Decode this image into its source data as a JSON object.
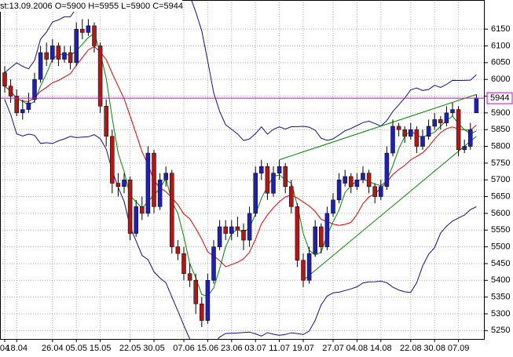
{
  "chart_data": {
    "type": "candlestick",
    "title": "st:13.09.2006 O=5900 H=5955 L=5900 C=5944",
    "categories": [
      "04",
      null,
      "18.04",
      null,
      null,
      null,
      null,
      null,
      "26.04",
      null,
      null,
      null,
      "05.05",
      null,
      null,
      null,
      "15.05",
      null,
      null,
      null,
      null,
      "22.05",
      null,
      null,
      null,
      "30.05",
      null,
      null,
      null,
      null,
      "07.06",
      null,
      null,
      null,
      "15.06",
      null,
      null,
      null,
      "23.06",
      null,
      null,
      null,
      "03.07",
      null,
      null,
      null,
      "11.07",
      null,
      null,
      null,
      "19.07",
      null,
      null,
      null,
      null,
      "27.07",
      null,
      null,
      null,
      "04.08",
      null,
      null,
      null,
      "14.08",
      null,
      null,
      null,
      null,
      "22.08",
      null,
      null,
      null,
      "30.08",
      null,
      null,
      null,
      "07.09",
      null,
      null,
      null
    ],
    "candles": [
      [
        6020,
        6040,
        5960,
        5980
      ],
      [
        5980,
        6000,
        5930,
        5950
      ],
      [
        5950,
        5970,
        5890,
        5900
      ],
      [
        5900,
        5940,
        5880,
        5910
      ],
      [
        5910,
        5960,
        5900,
        5930
      ],
      [
        5940,
        6020,
        5930,
        6000
      ],
      [
        6000,
        6100,
        5990,
        6080
      ],
      [
        6080,
        6110,
        6040,
        6060
      ],
      [
        6060,
        6120,
        6050,
        6100
      ],
      [
        6100,
        6110,
        6040,
        6060
      ],
      [
        6060,
        6100,
        6050,
        6080
      ],
      [
        6080,
        6100,
        6030,
        6050
      ],
      [
        6050,
        6170,
        6040,
        6150
      ],
      [
        6150,
        6180,
        6120,
        6140
      ],
      [
        6140,
        6180,
        6130,
        6160
      ],
      [
        6160,
        6170,
        6080,
        6100
      ],
      [
        6100,
        6110,
        5900,
        5920
      ],
      [
        5920,
        5940,
        5800,
        5830
      ],
      [
        5830,
        5850,
        5660,
        5690
      ],
      [
        5690,
        5720,
        5650,
        5680
      ],
      [
        5680,
        5720,
        5660,
        5700
      ],
      [
        5700,
        5710,
        5520,
        5540
      ],
      [
        5540,
        5640,
        5530,
        5620
      ],
      [
        5620,
        5650,
        5580,
        5600
      ],
      [
        5600,
        5800,
        5590,
        5780
      ],
      [
        5780,
        5790,
        5600,
        5620
      ],
      [
        5620,
        5720,
        5610,
        5700
      ],
      [
        5700,
        5740,
        5680,
        5720
      ],
      [
        5720,
        5730,
        5480,
        5500
      ],
      [
        5500,
        5520,
        5460,
        5480
      ],
      [
        5480,
        5500,
        5400,
        5420
      ],
      [
        5420,
        5450,
        5380,
        5400
      ],
      [
        5400,
        5420,
        5300,
        5330
      ],
      [
        5330,
        5350,
        5260,
        5280
      ],
      [
        5280,
        5420,
        5270,
        5400
      ],
      [
        5400,
        5520,
        5390,
        5500
      ],
      [
        5500,
        5580,
        5490,
        5560
      ],
      [
        5560,
        5580,
        5520,
        5540
      ],
      [
        5540,
        5580,
        5520,
        5560
      ],
      [
        5560,
        5590,
        5530,
        5550
      ],
      [
        5550,
        5570,
        5490,
        5520
      ],
      [
        5520,
        5620,
        5500,
        5600
      ],
      [
        5600,
        5740,
        5590,
        5720
      ],
      [
        5720,
        5760,
        5700,
        5740
      ],
      [
        5740,
        5750,
        5640,
        5660
      ],
      [
        5660,
        5740,
        5650,
        5720
      ],
      [
        5720,
        5760,
        5700,
        5740
      ],
      [
        5740,
        5750,
        5660,
        5680
      ],
      [
        5680,
        5700,
        5600,
        5620
      ],
      [
        5620,
        5630,
        5440,
        5460
      ],
      [
        5460,
        5480,
        5380,
        5400
      ],
      [
        5400,
        5500,
        5390,
        5480
      ],
      [
        5480,
        5580,
        5470,
        5560
      ],
      [
        5560,
        5570,
        5480,
        5500
      ],
      [
        5500,
        5620,
        5490,
        5600
      ],
      [
        5600,
        5660,
        5590,
        5640
      ],
      [
        5640,
        5720,
        5630,
        5700
      ],
      [
        5690,
        5730,
        5680,
        5710
      ],
      [
        5710,
        5720,
        5660,
        5680
      ],
      [
        5680,
        5720,
        5670,
        5700
      ],
      [
        5700,
        5740,
        5690,
        5720
      ],
      [
        5720,
        5730,
        5660,
        5680
      ],
      [
        5680,
        5690,
        5630,
        5650
      ],
      [
        5650,
        5700,
        5640,
        5680
      ],
      [
        5680,
        5800,
        5670,
        5780
      ],
      [
        5780,
        5880,
        5770,
        5860
      ],
      [
        5860,
        5870,
        5830,
        5850
      ],
      [
        5850,
        5860,
        5810,
        5830
      ],
      [
        5830,
        5870,
        5820,
        5850
      ],
      [
        5850,
        5860,
        5780,
        5800
      ],
      [
        5800,
        5850,
        5790,
        5830
      ],
      [
        5830,
        5880,
        5820,
        5860
      ],
      [
        5860,
        5900,
        5850,
        5880
      ],
      [
        5880,
        5890,
        5850,
        5870
      ],
      [
        5870,
        5920,
        5860,
        5900
      ],
      [
        5900,
        5930,
        5890,
        5910
      ],
      [
        5910,
        5920,
        5770,
        5790
      ],
      [
        5790,
        5820,
        5780,
        5800
      ],
      [
        5800,
        5870,
        5790,
        5850
      ],
      [
        5900,
        5955,
        5900,
        5944
      ]
    ],
    "up_color": "#1f1fb4",
    "down_color": "#b01818",
    "band_color": "#10108c",
    "ma_color": "#e00000",
    "fast_ma_color": "#008800",
    "price_line_color": "#cc00cc",
    "trendlines": [
      {
        "color": "#008800",
        "x": [
          46,
          79
        ],
        "y": [
          5760,
          5955
        ]
      },
      {
        "color": "#008800",
        "x": [
          50,
          79
        ],
        "y": [
          5400,
          5830
        ]
      }
    ],
    "ylim": [
      5225,
      6237
    ],
    "yticks": [
      5250,
      5300,
      5350,
      5400,
      5450,
      5500,
      5550,
      5600,
      5650,
      5700,
      5750,
      5800,
      5850,
      5900,
      5950,
      6000,
      6050,
      6100,
      6150
    ],
    "grid": true
  }
}
